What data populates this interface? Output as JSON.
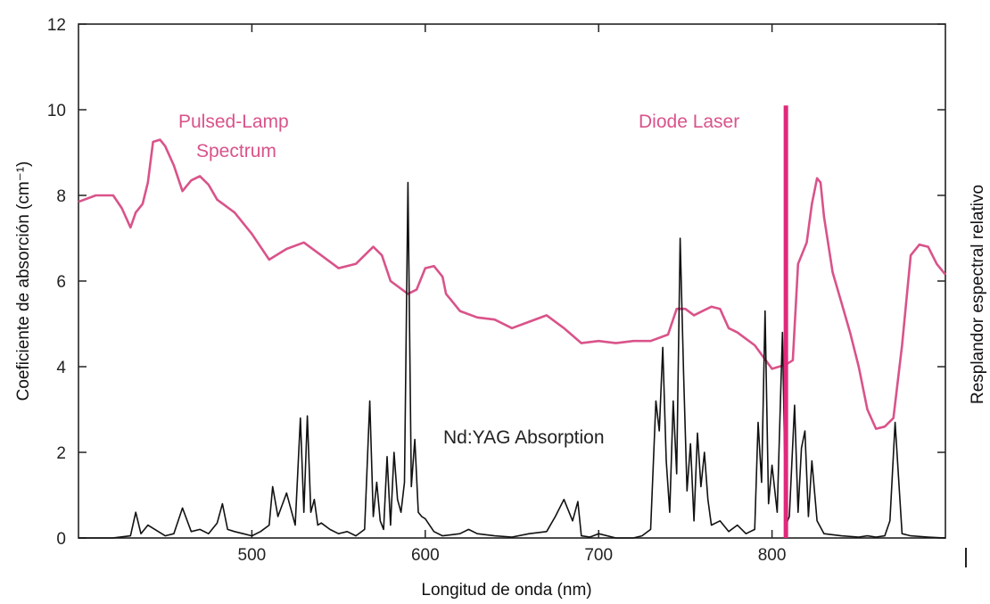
{
  "chart_data": {
    "type": "line",
    "xlabel": "Longitud de onda (nm)",
    "ylabel_left": "Coeficiente de absorción (cm⁻¹)",
    "ylabel_right": "Resplandor espectral relativo",
    "xlim": [
      400,
      900
    ],
    "ylim": [
      0,
      12
    ],
    "xticks": [
      500,
      600,
      700,
      800
    ],
    "yticks": [
      0,
      2,
      4,
      6,
      8,
      10,
      12
    ],
    "grid": false,
    "annotations": {
      "pulsed_lamp_line1": "Pulsed-Lamp",
      "pulsed_lamp_line2": "Spectrum",
      "diode_laser": "Diode Laser",
      "ndyag": "Nd:YAG Absorption"
    },
    "colors": {
      "lamp": "#d9538a",
      "laser": "#e0297a",
      "absorption": "#111111",
      "frame": "#222222"
    },
    "series": [
      {
        "name": "Pulsed-Lamp Spectrum",
        "x": [
          400,
          410,
          420,
          425,
          430,
          433,
          437,
          440,
          443,
          447,
          450,
          455,
          460,
          465,
          470,
          475,
          480,
          490,
          500,
          510,
          520,
          530,
          540,
          550,
          560,
          570,
          575,
          580,
          590,
          595,
          600,
          605,
          610,
          612,
          615,
          620,
          630,
          640,
          650,
          660,
          670,
          680,
          690,
          700,
          710,
          720,
          730,
          740,
          745,
          750,
          755,
          760,
          765,
          770,
          775,
          780,
          790,
          800,
          808,
          812,
          815,
          820,
          823,
          826,
          828,
          830,
          835,
          840,
          845,
          850,
          855,
          860,
          865,
          870,
          875,
          880,
          885,
          890,
          895,
          900
        ],
        "values": [
          7.85,
          8.0,
          8.0,
          7.7,
          7.25,
          7.6,
          7.8,
          8.3,
          9.25,
          9.3,
          9.15,
          8.7,
          8.1,
          8.35,
          8.45,
          8.25,
          7.9,
          7.6,
          7.1,
          6.5,
          6.75,
          6.9,
          6.6,
          6.3,
          6.4,
          6.8,
          6.6,
          6.0,
          5.7,
          5.8,
          6.3,
          6.35,
          6.1,
          5.7,
          5.55,
          5.3,
          5.15,
          5.1,
          4.9,
          5.05,
          5.2,
          4.9,
          4.55,
          4.6,
          4.55,
          4.6,
          4.6,
          4.75,
          5.35,
          5.35,
          5.2,
          5.3,
          5.4,
          5.35,
          4.9,
          4.8,
          4.5,
          3.95,
          4.05,
          4.15,
          6.4,
          6.9,
          7.8,
          8.4,
          8.3,
          7.5,
          6.2,
          5.5,
          4.8,
          4.0,
          3.0,
          2.55,
          2.6,
          2.8,
          4.5,
          6.6,
          6.85,
          6.8,
          6.4,
          6.15
        ]
      },
      {
        "name": "Nd:YAG Absorption",
        "x": [
          400,
          420,
          430,
          433,
          436,
          440,
          450,
          455,
          460,
          465,
          470,
          475,
          480,
          483,
          486,
          490,
          495,
          500,
          505,
          510,
          512,
          515,
          520,
          525,
          528,
          530,
          532,
          534,
          536,
          538,
          540,
          545,
          550,
          555,
          560,
          565,
          568,
          570,
          572,
          574,
          576,
          578,
          580,
          582,
          584,
          586,
          588,
          590,
          592,
          594,
          596,
          598,
          600,
          605,
          610,
          620,
          625,
          630,
          640,
          650,
          660,
          670,
          675,
          680,
          685,
          688,
          690,
          695,
          700,
          710,
          720,
          725,
          730,
          733,
          735,
          737,
          739,
          741,
          743,
          745,
          747,
          749,
          751,
          753,
          755,
          757,
          759,
          761,
          763,
          765,
          770,
          775,
          780,
          785,
          790,
          792,
          794,
          796,
          798,
          800,
          803,
          806,
          808,
          810,
          813,
          815,
          817,
          819,
          821,
          823,
          826,
          830,
          840,
          850,
          855,
          860,
          865,
          868,
          871,
          875,
          880,
          890,
          900
        ],
        "values": [
          0,
          0,
          0.05,
          0.6,
          0.1,
          0.3,
          0.05,
          0.1,
          0.7,
          0.15,
          0.2,
          0.1,
          0.35,
          0.8,
          0.2,
          0.15,
          0.1,
          0.05,
          0.15,
          0.3,
          1.2,
          0.5,
          1.05,
          0.3,
          2.8,
          0.6,
          2.85,
          0.6,
          0.9,
          0.3,
          0.35,
          0.2,
          0.1,
          0.15,
          0.05,
          0.2,
          3.2,
          0.5,
          1.3,
          0.4,
          0.2,
          1.9,
          0.3,
          2.0,
          0.9,
          0.6,
          1.3,
          8.3,
          1.2,
          2.3,
          0.6,
          0.5,
          0.45,
          0.15,
          0.05,
          0.1,
          0.2,
          0.1,
          0.05,
          0.02,
          0.1,
          0.15,
          0.5,
          0.9,
          0.4,
          0.85,
          0.05,
          0.02,
          0.1,
          0,
          0,
          0.05,
          0.2,
          3.2,
          2.5,
          4.45,
          1.8,
          0.6,
          3.2,
          1.5,
          7.0,
          3.8,
          1.1,
          2.2,
          0.4,
          2.45,
          1.2,
          2.0,
          0.9,
          0.3,
          0.4,
          0.15,
          0.3,
          0.1,
          0.2,
          2.7,
          1.3,
          5.3,
          0.8,
          1.7,
          0.6,
          4.8,
          0.3,
          0.5,
          3.1,
          0.6,
          2.1,
          2.5,
          0.5,
          1.8,
          0.4,
          0.1,
          0.05,
          0.02,
          0.05,
          0.02,
          0.05,
          0.4,
          2.7,
          0.1,
          0.05,
          0.02,
          0
        ]
      },
      {
        "name": "Diode Laser",
        "x": [
          808,
          808
        ],
        "values": [
          0,
          10.1
        ]
      }
    ]
  }
}
